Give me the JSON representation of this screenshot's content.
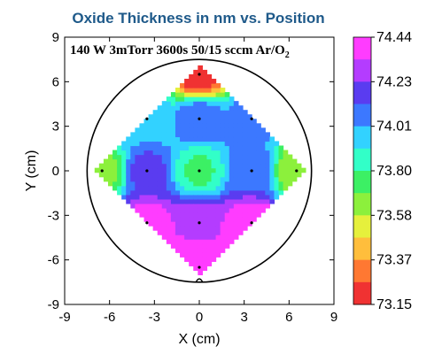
{
  "chart_data": {
    "type": "heatmap",
    "title": "Oxide Thickness in nm vs. Position",
    "subtitle": {
      "main": "140 W 3mTorr 3600s 50/15 sccm Ar/O",
      "sub": "2"
    },
    "xlabel": "X (cm)",
    "ylabel": "Y (cm)",
    "xlim": [
      -9,
      9
    ],
    "ylim": [
      -9,
      9
    ],
    "xticks": [
      "-9",
      "-6",
      "-3",
      "0",
      "3",
      "6",
      "9"
    ],
    "yticks": [
      "-9",
      "-6",
      "-3",
      "0",
      "3",
      "6",
      "9"
    ],
    "colorbar": {
      "labels": [
        "74.44",
        "74.23",
        "74.01",
        "73.80",
        "73.58",
        "73.37",
        "73.15"
      ],
      "colors": [
        "#ff3cff",
        "#b43cff",
        "#5a3cf0",
        "#3c78ff",
        "#32d2ff",
        "#32ffc8",
        "#3cf064",
        "#8cf03c",
        "#e6f03c",
        "#ffbe3c",
        "#ff7832",
        "#f03232"
      ]
    },
    "wafer_radius_cm": 7.5,
    "grid": false,
    "measurements": [
      {
        "x": 0,
        "y": 6.5,
        "value": 73.2
      },
      {
        "x": -3.5,
        "y": 3.5,
        "value": 73.95
      },
      {
        "x": 0,
        "y": 3.5,
        "value": 74.1
      },
      {
        "x": 3.5,
        "y": 3.5,
        "value": 74.05
      },
      {
        "x": -6.5,
        "y": 0,
        "value": 73.65
      },
      {
        "x": -3.5,
        "y": 0,
        "value": 74.15
      },
      {
        "x": 0,
        "y": 0,
        "value": 73.78
      },
      {
        "x": 3.5,
        "y": 0,
        "value": 74.1
      },
      {
        "x": 6.5,
        "y": 0,
        "value": 73.62
      },
      {
        "x": -3.5,
        "y": -3.5,
        "value": 74.38
      },
      {
        "x": 0,
        "y": -3.5,
        "value": 74.32
      },
      {
        "x": 3.5,
        "y": -3.5,
        "value": 74.42
      },
      {
        "x": 0,
        "y": -6.5,
        "value": 74.44
      }
    ]
  }
}
